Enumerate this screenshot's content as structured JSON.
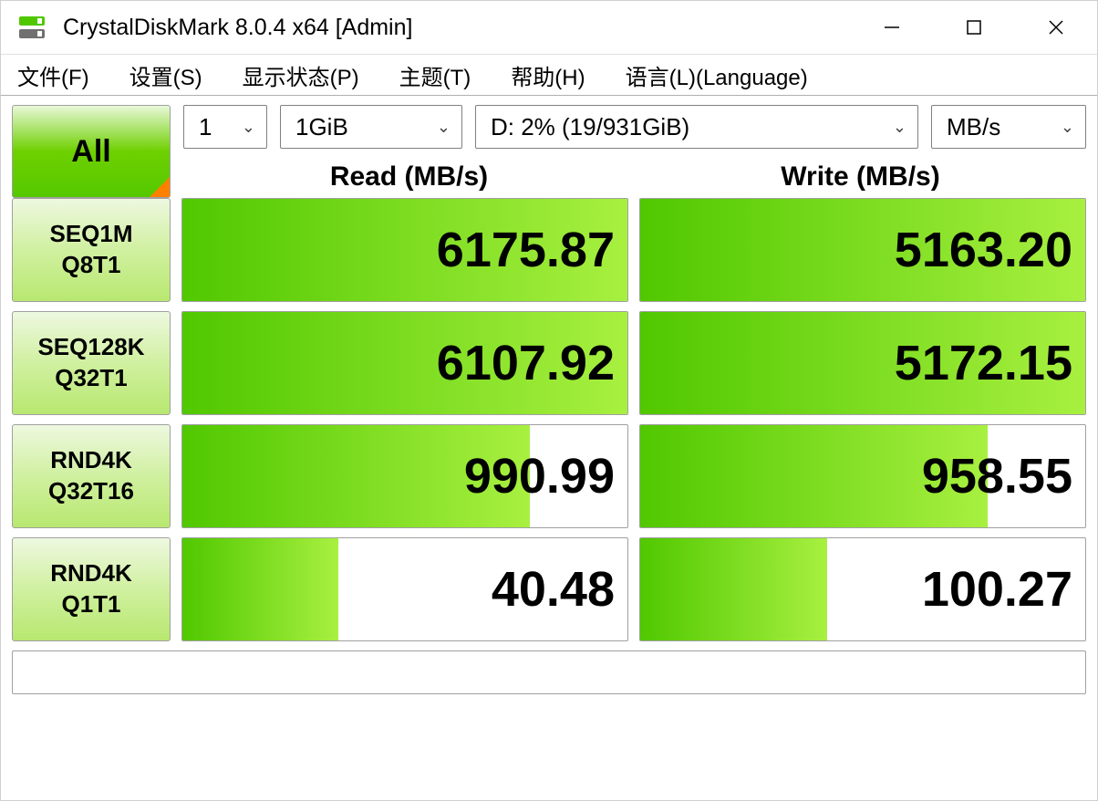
{
  "window": {
    "title": "CrystalDiskMark 8.0.4 x64 [Admin]"
  },
  "menu": [
    "文件(F)",
    "设置(S)",
    "显示状态(P)",
    "主题(T)",
    "帮助(H)",
    "语言(L)(Language)"
  ],
  "controls": {
    "all_label": "All",
    "loops": "1",
    "size": "1GiB",
    "drive": "D: 2% (19/931GiB)",
    "unit": "MB/s"
  },
  "headers": {
    "read": "Read (MB/s)",
    "write": "Write (MB/s)"
  },
  "tests": [
    {
      "name1": "SEQ1M",
      "name2": "Q8T1",
      "read": "6175.87",
      "write": "5163.20",
      "read_pct": 100,
      "write_pct": 100
    },
    {
      "name1": "SEQ128K",
      "name2": "Q32T1",
      "read": "6107.92",
      "write": "5172.15",
      "read_pct": 100,
      "write_pct": 100
    },
    {
      "name1": "RND4K",
      "name2": "Q32T16",
      "read": "990.99",
      "write": "958.55",
      "read_pct": 78,
      "write_pct": 78
    },
    {
      "name1": "RND4K",
      "name2": "Q1T1",
      "read": "40.48",
      "write": "100.27",
      "read_pct": 35,
      "write_pct": 42
    }
  ],
  "colors": {
    "bar_start": "#50c800",
    "bar_end": "#a8f040",
    "corner": "#ff8000"
  }
}
